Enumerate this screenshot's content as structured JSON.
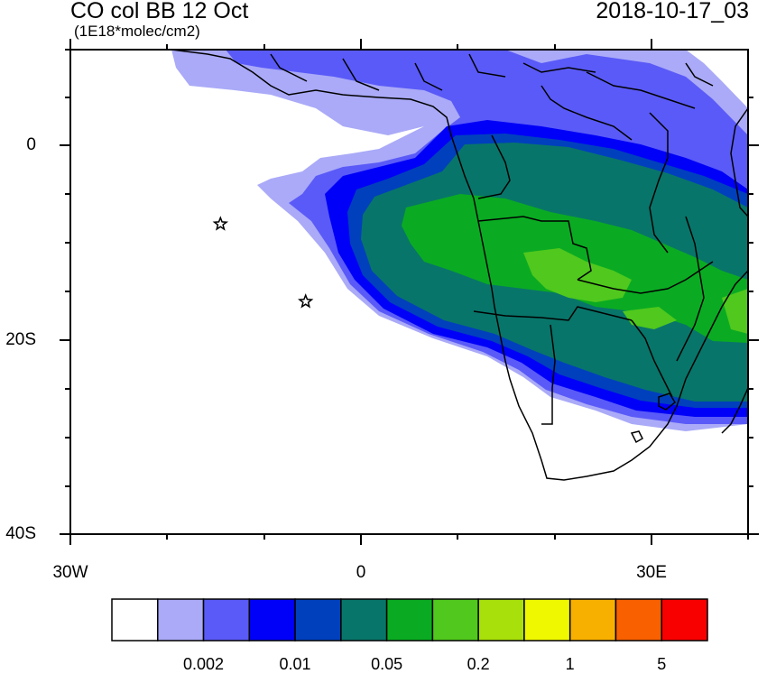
{
  "header": {
    "title": "CO col BB 12 Oct",
    "units": "(1E18*molec/cm2)",
    "timestamp": "2018-10-17_03"
  },
  "axes": {
    "lat_labels": [
      "0",
      "20S",
      "40S"
    ],
    "lon_labels": [
      "30W",
      "0",
      "30E"
    ]
  },
  "legend": {
    "colors": [
      "#ffffff",
      "#aaaaf8",
      "#5a5af8",
      "#0000f8",
      "#0040bd",
      "#08756a",
      "#0aab22",
      "#50c81d",
      "#a8e00b",
      "#f0f800",
      "#f8b000",
      "#f86000",
      "#f80000"
    ],
    "labels": [
      "0.002",
      "0.01",
      "0.05",
      "0.2",
      "1",
      "5"
    ]
  },
  "markers": [
    {
      "name": "star-marker-1",
      "lon": -14.5,
      "lat": -8
    },
    {
      "name": "star-marker-2",
      "lon": -5.7,
      "lat": -16
    }
  ]
}
